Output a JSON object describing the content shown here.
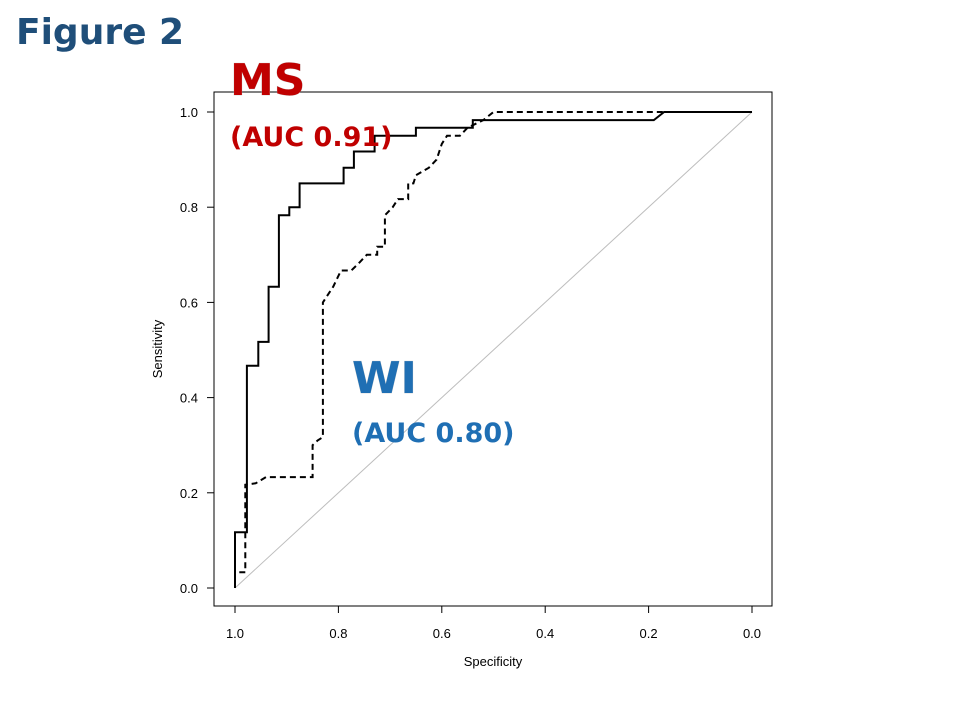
{
  "figure_label": "Figure 2",
  "colors": {
    "ms": "#c00000",
    "wi": "#1f6fb4",
    "title": "#1f4e79"
  },
  "chart_data": {
    "type": "line",
    "xlabel": "Specificity",
    "ylabel": "Sensitivity",
    "xlim": [
      1.0,
      0.0
    ],
    "ylim": [
      0.0,
      1.0
    ],
    "x_reversed": true,
    "grid": false,
    "legend": "none",
    "x_ticks": [
      "1.0",
      "0.8",
      "0.6",
      "0.4",
      "0.2",
      "0.0"
    ],
    "y_ticks": [
      "0.0",
      "0.2",
      "0.4",
      "0.6",
      "0.8",
      "1.0"
    ],
    "annotations": [
      {
        "name": "MS",
        "auc_text": "(AUC 0.91)",
        "color": "#c00000"
      },
      {
        "name": "WI",
        "auc_text": "(AUC 0.80)",
        "color": "#1f6fb4"
      }
    ],
    "series": [
      {
        "style": "solid",
        "points": [
          [
            1.0,
            0.0
          ],
          [
            1.0,
            0.117
          ],
          [
            0.977,
            0.117
          ],
          [
            0.977,
            0.467
          ],
          [
            0.955,
            0.467
          ],
          [
            0.955,
            0.517
          ],
          [
            0.935,
            0.517
          ],
          [
            0.935,
            0.633
          ],
          [
            0.915,
            0.633
          ],
          [
            0.915,
            0.783
          ],
          [
            0.895,
            0.783
          ],
          [
            0.895,
            0.8
          ],
          [
            0.875,
            0.8
          ],
          [
            0.875,
            0.85
          ],
          [
            0.79,
            0.85
          ],
          [
            0.79,
            0.883
          ],
          [
            0.77,
            0.883
          ],
          [
            0.77,
            0.917
          ],
          [
            0.73,
            0.917
          ],
          [
            0.73,
            0.95
          ],
          [
            0.65,
            0.95
          ],
          [
            0.65,
            0.967
          ],
          [
            0.54,
            0.967
          ],
          [
            0.54,
            0.983
          ],
          [
            0.19,
            0.983
          ],
          [
            0.17,
            1.0
          ],
          [
            0.0,
            1.0
          ]
        ]
      },
      {
        "style": "dashed",
        "points": [
          [
            1.0,
            0.0
          ],
          [
            1.0,
            0.033
          ],
          [
            0.98,
            0.033
          ],
          [
            0.98,
            0.217
          ],
          [
            0.96,
            0.22
          ],
          [
            0.94,
            0.233
          ],
          [
            0.85,
            0.233
          ],
          [
            0.85,
            0.3
          ],
          [
            0.84,
            0.31
          ],
          [
            0.83,
            0.317
          ],
          [
            0.83,
            0.6
          ],
          [
            0.81,
            0.633
          ],
          [
            0.795,
            0.667
          ],
          [
            0.775,
            0.667
          ],
          [
            0.76,
            0.683
          ],
          [
            0.745,
            0.7
          ],
          [
            0.725,
            0.7
          ],
          [
            0.725,
            0.717
          ],
          [
            0.71,
            0.717
          ],
          [
            0.71,
            0.783
          ],
          [
            0.695,
            0.8
          ],
          [
            0.685,
            0.817
          ],
          [
            0.665,
            0.817
          ],
          [
            0.665,
            0.85
          ],
          [
            0.655,
            0.85
          ],
          [
            0.65,
            0.867
          ],
          [
            0.625,
            0.883
          ],
          [
            0.61,
            0.9
          ],
          [
            0.6,
            0.933
          ],
          [
            0.59,
            0.95
          ],
          [
            0.565,
            0.95
          ],
          [
            0.55,
            0.967
          ],
          [
            0.52,
            0.983
          ],
          [
            0.5,
            1.0
          ],
          [
            0.0,
            1.0
          ]
        ]
      }
    ]
  }
}
